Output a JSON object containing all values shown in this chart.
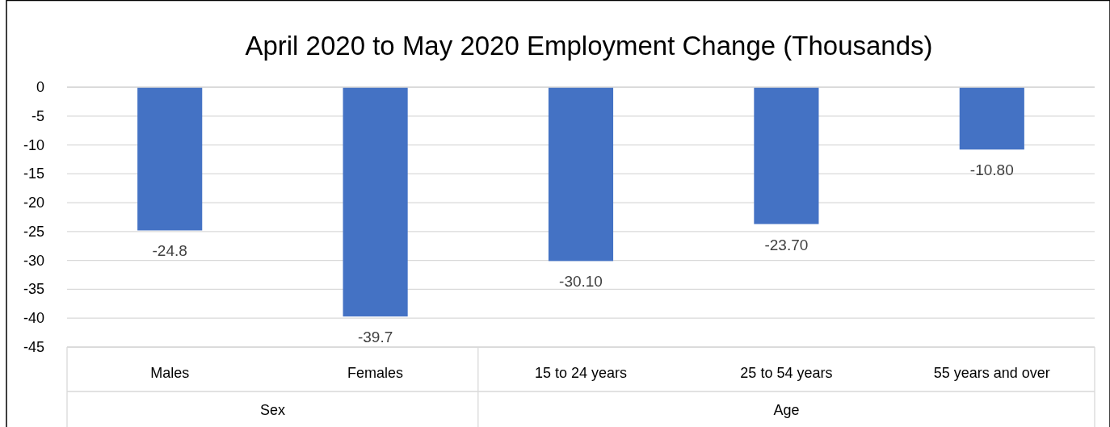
{
  "chart_data": {
    "type": "bar",
    "title": "April 2020 to May 2020 Employment Change (Thousands)",
    "categories": [
      "Males",
      "Females",
      "15 to 24 years",
      "25 to 54 years",
      "55 years and over"
    ],
    "values": [
      -24.8,
      -39.7,
      -30.1,
      -23.7,
      -10.8
    ],
    "value_labels": [
      "-24.8",
      "-39.7",
      "-30.10",
      "-23.70",
      "-10.80"
    ],
    "color": "#4472c4",
    "ylim": [
      -45,
      0
    ],
    "yticks": [
      0,
      -5,
      -10,
      -15,
      -20,
      -25,
      -30,
      -35,
      -40,
      -45
    ],
    "grid": "y",
    "annotations": [
      "Sex",
      "Age"
    ]
  }
}
